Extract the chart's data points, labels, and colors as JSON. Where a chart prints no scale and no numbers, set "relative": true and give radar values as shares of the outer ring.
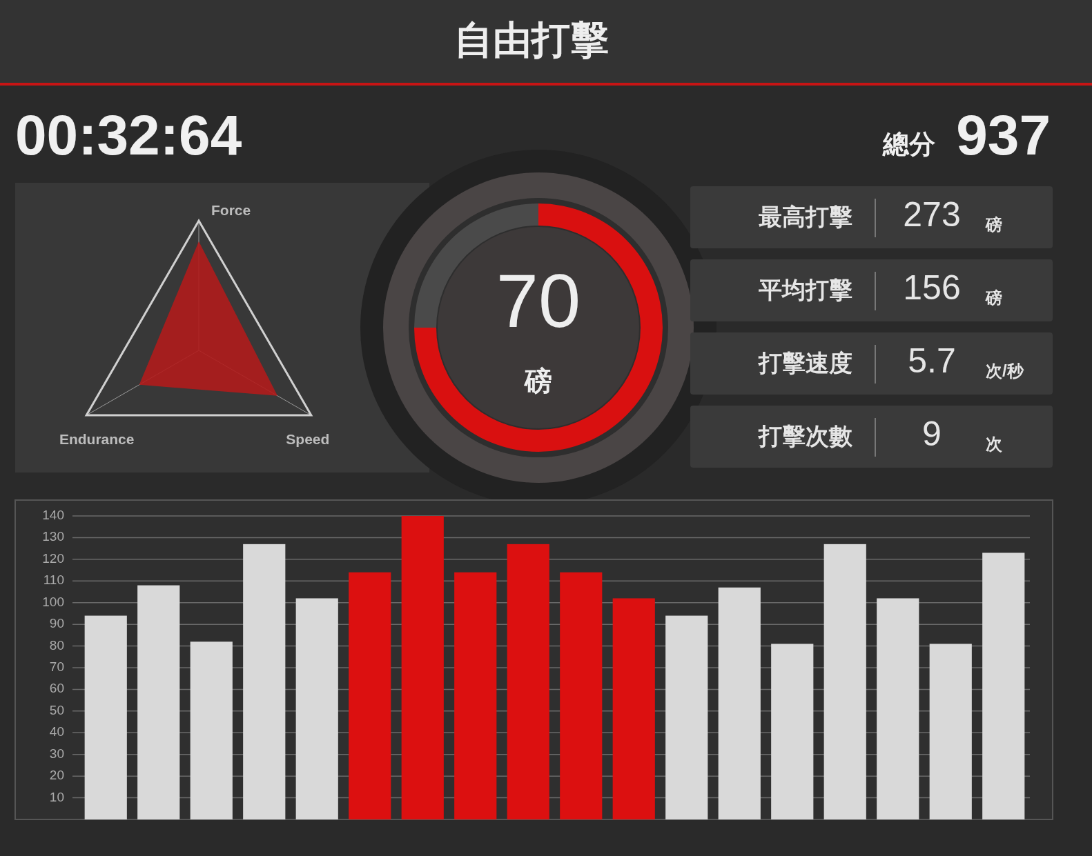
{
  "chart_data": [
    {
      "type": "other",
      "title": "自由打擊",
      "annotations": [
        "00:32:64",
        "總分",
        "937"
      ]
    },
    {
      "type": "radar",
      "relative": true,
      "categories": [
        "Force",
        "Speed",
        "Endurance"
      ],
      "series": [
        {
          "color": "#b01c1c",
          "values": [
            0.84,
            0.7,
            0.53
          ]
        }
      ]
    },
    {
      "type": "donut",
      "categories": [
        null,
        null
      ],
      "values": [
        75,
        25
      ],
      "colors": [
        "#d91010",
        "#4a4a4a"
      ],
      "annotations": [
        "70",
        "磅"
      ]
    },
    {
      "type": "other",
      "categories": [
        "最高打擊",
        "平均打擊",
        "打擊速度",
        "打擊次數"
      ],
      "values": [
        273,
        156,
        5.7,
        9
      ],
      "data_labels": true,
      "annotations": [
        "磅",
        "磅",
        "次/秒",
        "次"
      ]
    },
    {
      "type": "bar",
      "categories": [
        null,
        null,
        null,
        null,
        null,
        null,
        null,
        null,
        null,
        null,
        null,
        null,
        null,
        null,
        null,
        null,
        null,
        null
      ],
      "values": [
        94,
        108,
        82,
        127,
        102,
        114,
        140,
        114,
        127,
        114,
        102,
        94,
        107,
        81,
        127,
        102,
        81,
        123
      ],
      "colors": [
        "#d9d9d9",
        "#d9d9d9",
        "#d9d9d9",
        "#d9d9d9",
        "#d9d9d9",
        "#dc1010",
        "#dc1010",
        "#dc1010",
        "#dc1010",
        "#dc1010",
        "#dc1010",
        "#d9d9d9",
        "#d9d9d9",
        "#d9d9d9",
        "#d9d9d9",
        "#d9d9d9",
        "#d9d9d9",
        "#d9d9d9"
      ],
      "ylim": [
        0,
        140
      ],
      "yticks": [
        10,
        20,
        30,
        40,
        50,
        60,
        70,
        80,
        90,
        100,
        110,
        120,
        130,
        140
      ],
      "grid": "y"
    }
  ]
}
